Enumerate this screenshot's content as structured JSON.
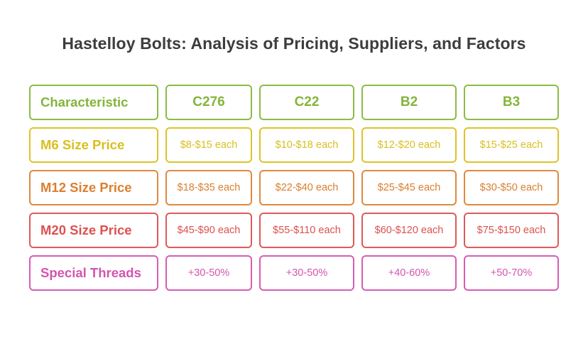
{
  "title": "Hastelloy Bolts: Analysis of Pricing, Suppliers, and Factors",
  "colors": {
    "row_header": "#8dbb45",
    "m6": "#dcc42a",
    "m12": "#dd8a3f",
    "m20": "#df5a59",
    "threads": "#d65db4",
    "title": "#3d3d3d"
  },
  "table": {
    "rows": [
      {
        "label": "Characteristic",
        "values": [
          "C276",
          "C22",
          "B2",
          "B3"
        ]
      },
      {
        "label": "M6 Size Price",
        "values": [
          "$8-$15 each",
          "$10-$18 each",
          "$12-$20 each",
          "$15-$25 each"
        ]
      },
      {
        "label": "M12 Size Price",
        "values": [
          "$18-$35 each",
          "$22-$40 each",
          "$25-$45 each",
          "$30-$50 each"
        ]
      },
      {
        "label": "M20 Size Price",
        "values": [
          "$45-$90 each",
          "$55-$110 each",
          "$60-$120 each",
          "$75-$150 each"
        ]
      },
      {
        "label": "Special Threads",
        "values": [
          "+30-50%",
          "+30-50%",
          "+40-60%",
          "+50-70%"
        ]
      }
    ]
  }
}
